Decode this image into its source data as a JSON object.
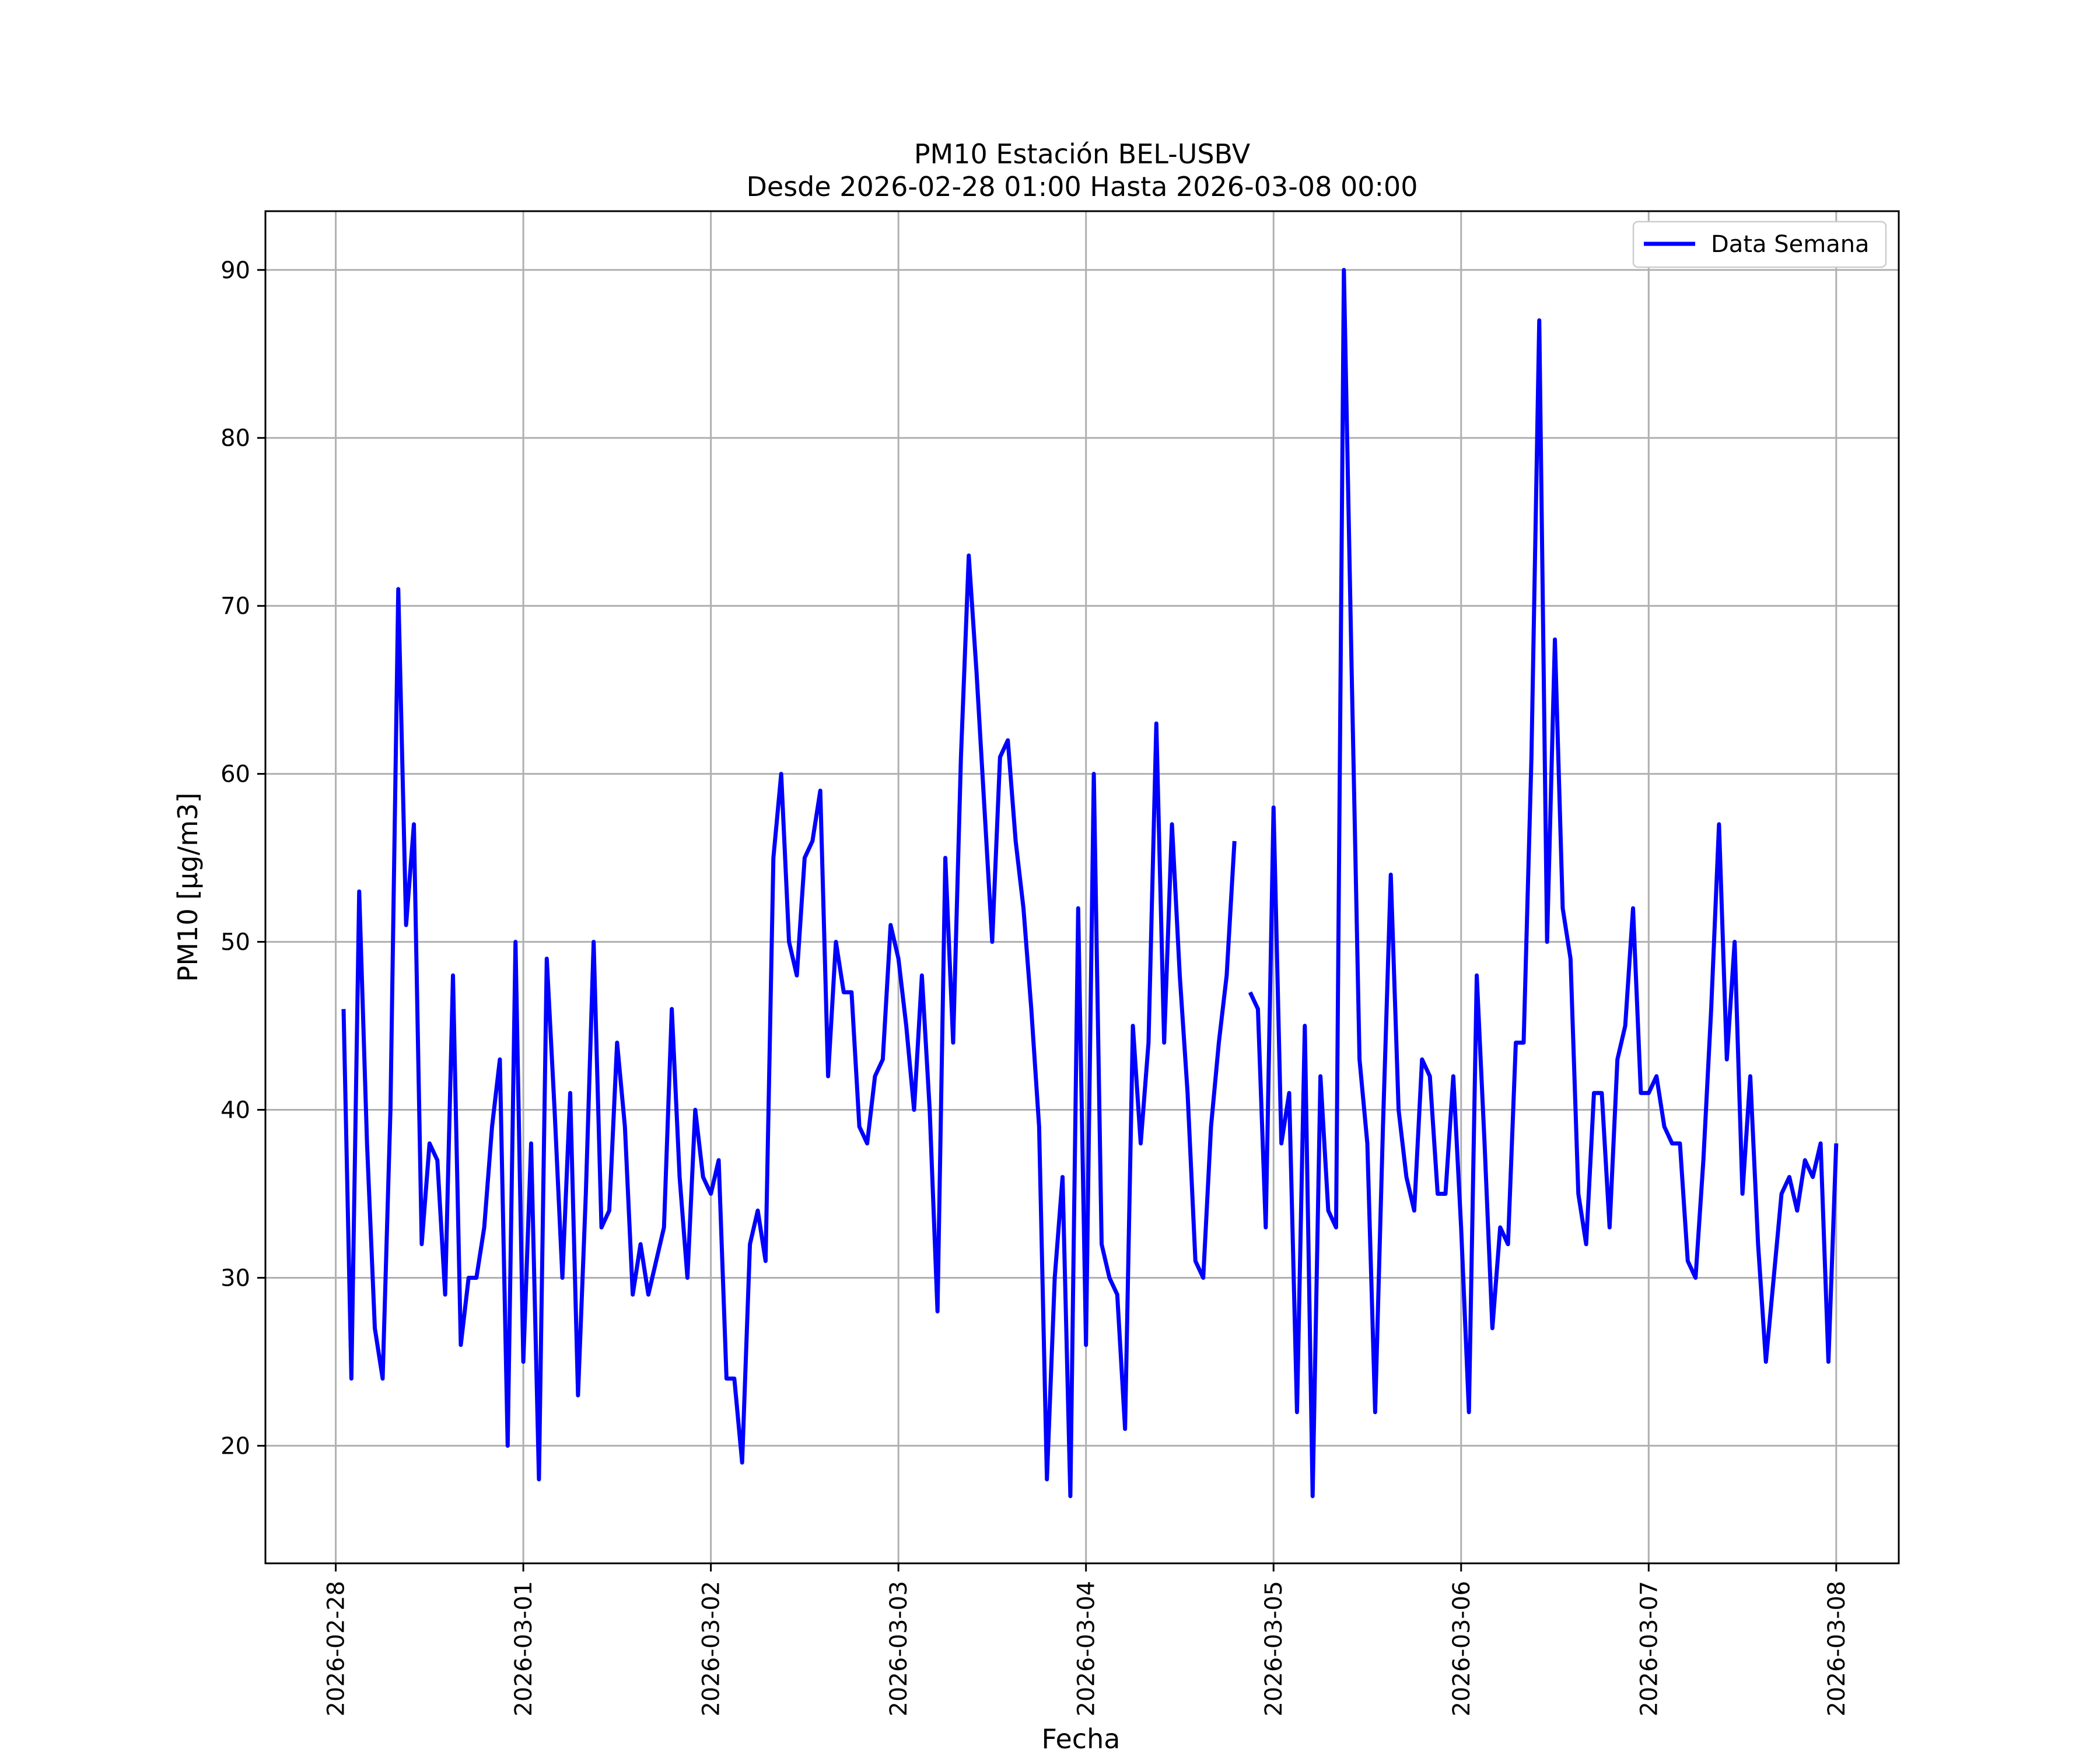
{
  "chart_data": {
    "type": "line",
    "title": "PM10 Estación BEL-USBV",
    "subtitle": "Desde 2026-02-28 01:00 Hasta 2026-03-08 00:00",
    "xlabel": "Fecha",
    "ylabel": "PM10 [μg/m3]",
    "x_range": [
      "2026-02-27 15:00",
      "2026-03-08 08:00"
    ],
    "x_ticks": [
      "2026-02-28",
      "2026-03-01",
      "2026-03-02",
      "2026-03-03",
      "2026-03-04",
      "2026-03-05",
      "2026-03-06",
      "2026-03-07",
      "2026-03-08"
    ],
    "ylim": [
      13,
      93.5
    ],
    "y_ticks": [
      20,
      30,
      40,
      50,
      60,
      70,
      80,
      90
    ],
    "grid": true,
    "legend_position": "top-right",
    "series": [
      {
        "name": "Data Semana",
        "color": "#0000ff",
        "points": [
          [
            "2026-02-28 01:00",
            46
          ],
          [
            "2026-02-28 02:00",
            24
          ],
          [
            "2026-02-28 03:00",
            53
          ],
          [
            "2026-02-28 04:00",
            38
          ],
          [
            "2026-02-28 05:00",
            27
          ],
          [
            "2026-02-28 06:00",
            24
          ],
          [
            "2026-02-28 07:00",
            40
          ],
          [
            "2026-02-28 08:00",
            71
          ],
          [
            "2026-02-28 09:00",
            51
          ],
          [
            "2026-02-28 10:00",
            57
          ],
          [
            "2026-02-28 11:00",
            32
          ],
          [
            "2026-02-28 12:00",
            38
          ],
          [
            "2026-02-28 13:00",
            37
          ],
          [
            "2026-02-28 14:00",
            29
          ],
          [
            "2026-02-28 15:00",
            48
          ],
          [
            "2026-02-28 16:00",
            26
          ],
          [
            "2026-02-28 17:00",
            30
          ],
          [
            "2026-02-28 18:00",
            30
          ],
          [
            "2026-02-28 19:00",
            33
          ],
          [
            "2026-02-28 20:00",
            39
          ],
          [
            "2026-02-28 21:00",
            43
          ],
          [
            "2026-02-28 22:00",
            20
          ],
          [
            "2026-02-28 23:00",
            50
          ],
          [
            "2026-03-01 00:00",
            25
          ],
          [
            "2026-03-01 01:00",
            38
          ],
          [
            "2026-03-01 02:00",
            18
          ],
          [
            "2026-03-01 03:00",
            49
          ],
          [
            "2026-03-01 04:00",
            40
          ],
          [
            "2026-03-01 05:00",
            30
          ],
          [
            "2026-03-01 06:00",
            41
          ],
          [
            "2026-03-01 07:00",
            23
          ],
          [
            "2026-03-01 08:00",
            35
          ],
          [
            "2026-03-01 09:00",
            50
          ],
          [
            "2026-03-01 10:00",
            33
          ],
          [
            "2026-03-01 11:00",
            34
          ],
          [
            "2026-03-01 12:00",
            44
          ],
          [
            "2026-03-01 13:00",
            39
          ],
          [
            "2026-03-01 14:00",
            29
          ],
          [
            "2026-03-01 15:00",
            32
          ],
          [
            "2026-03-01 16:00",
            29
          ],
          [
            "2026-03-01 17:00",
            31
          ],
          [
            "2026-03-01 18:00",
            33
          ],
          [
            "2026-03-01 19:00",
            46
          ],
          [
            "2026-03-01 20:00",
            36
          ],
          [
            "2026-03-01 21:00",
            30
          ],
          [
            "2026-03-01 22:00",
            40
          ],
          [
            "2026-03-01 23:00",
            36
          ],
          [
            "2026-03-02 00:00",
            35
          ],
          [
            "2026-03-02 01:00",
            37
          ],
          [
            "2026-03-02 02:00",
            24
          ],
          [
            "2026-03-02 03:00",
            24
          ],
          [
            "2026-03-02 04:00",
            19
          ],
          [
            "2026-03-02 05:00",
            32
          ],
          [
            "2026-03-02 06:00",
            34
          ],
          [
            "2026-03-02 07:00",
            31
          ],
          [
            "2026-03-02 08:00",
            55
          ],
          [
            "2026-03-02 09:00",
            60
          ],
          [
            "2026-03-02 10:00",
            50
          ],
          [
            "2026-03-02 11:00",
            48
          ],
          [
            "2026-03-02 12:00",
            55
          ],
          [
            "2026-03-02 13:00",
            56
          ],
          [
            "2026-03-02 14:00",
            59
          ],
          [
            "2026-03-02 15:00",
            42
          ],
          [
            "2026-03-02 16:00",
            50
          ],
          [
            "2026-03-02 17:00",
            47
          ],
          [
            "2026-03-02 18:00",
            47
          ],
          [
            "2026-03-02 19:00",
            39
          ],
          [
            "2026-03-02 20:00",
            38
          ],
          [
            "2026-03-02 21:00",
            42
          ],
          [
            "2026-03-02 22:00",
            43
          ],
          [
            "2026-03-02 23:00",
            51
          ],
          [
            "2026-03-03 00:00",
            49
          ],
          [
            "2026-03-03 01:00",
            45
          ],
          [
            "2026-03-03 02:00",
            40
          ],
          [
            "2026-03-03 03:00",
            48
          ],
          [
            "2026-03-03 04:00",
            40
          ],
          [
            "2026-03-03 05:00",
            28
          ],
          [
            "2026-03-03 06:00",
            55
          ],
          [
            "2026-03-03 07:00",
            44
          ],
          [
            "2026-03-03 08:00",
            61
          ],
          [
            "2026-03-03 09:00",
            73
          ],
          [
            "2026-03-03 10:00",
            66
          ],
          [
            "2026-03-03 11:00",
            58
          ],
          [
            "2026-03-03 12:00",
            50
          ],
          [
            "2026-03-03 13:00",
            61
          ],
          [
            "2026-03-03 14:00",
            62
          ],
          [
            "2026-03-03 15:00",
            56
          ],
          [
            "2026-03-03 16:00",
            52
          ],
          [
            "2026-03-03 17:00",
            46
          ],
          [
            "2026-03-03 18:00",
            39
          ],
          [
            "2026-03-03 19:00",
            18
          ],
          [
            "2026-03-03 20:00",
            30
          ],
          [
            "2026-03-03 21:00",
            36
          ],
          [
            "2026-03-03 22:00",
            17
          ],
          [
            "2026-03-03 23:00",
            52
          ],
          [
            "2026-03-04 00:00",
            26
          ],
          [
            "2026-03-04 01:00",
            60
          ],
          [
            "2026-03-04 02:00",
            32
          ],
          [
            "2026-03-04 03:00",
            30
          ],
          [
            "2026-03-04 04:00",
            29
          ],
          [
            "2026-03-04 05:00",
            21
          ],
          [
            "2026-03-04 06:00",
            45
          ],
          [
            "2026-03-04 07:00",
            38
          ],
          [
            "2026-03-04 08:00",
            44
          ],
          [
            "2026-03-04 09:00",
            63
          ],
          [
            "2026-03-04 10:00",
            44
          ],
          [
            "2026-03-04 11:00",
            57
          ],
          [
            "2026-03-04 12:00",
            48
          ],
          [
            "2026-03-04 13:00",
            41
          ],
          [
            "2026-03-04 14:00",
            31
          ],
          [
            "2026-03-04 15:00",
            30
          ],
          [
            "2026-03-04 16:00",
            39
          ],
          [
            "2026-03-04 17:00",
            44
          ],
          [
            "2026-03-04 18:00",
            48
          ],
          [
            "2026-03-04 19:00",
            56
          ],
          [
            "2026-03-04 20:00",
            null
          ],
          [
            "2026-03-04 21:00",
            47
          ],
          [
            "2026-03-04 22:00",
            46
          ],
          [
            "2026-03-04 23:00",
            33
          ],
          [
            "2026-03-05 00:00",
            58
          ],
          [
            "2026-03-05 01:00",
            38
          ],
          [
            "2026-03-05 02:00",
            41
          ],
          [
            "2026-03-05 03:00",
            22
          ],
          [
            "2026-03-05 04:00",
            45
          ],
          [
            "2026-03-05 05:00",
            17
          ],
          [
            "2026-03-05 06:00",
            42
          ],
          [
            "2026-03-05 07:00",
            34
          ],
          [
            "2026-03-05 08:00",
            33
          ],
          [
            "2026-03-05 09:00",
            90
          ],
          [
            "2026-03-05 10:00",
            66
          ],
          [
            "2026-03-05 11:00",
            43
          ],
          [
            "2026-03-05 12:00",
            38
          ],
          [
            "2026-03-05 13:00",
            22
          ],
          [
            "2026-03-05 14:00",
            39
          ],
          [
            "2026-03-05 15:00",
            54
          ],
          [
            "2026-03-05 16:00",
            40
          ],
          [
            "2026-03-05 17:00",
            36
          ],
          [
            "2026-03-05 18:00",
            34
          ],
          [
            "2026-03-05 19:00",
            43
          ],
          [
            "2026-03-05 20:00",
            42
          ],
          [
            "2026-03-05 21:00",
            35
          ],
          [
            "2026-03-05 22:00",
            35
          ],
          [
            "2026-03-05 23:00",
            42
          ],
          [
            "2026-03-06 00:00",
            33
          ],
          [
            "2026-03-06 01:00",
            22
          ],
          [
            "2026-03-06 02:00",
            48
          ],
          [
            "2026-03-06 03:00",
            38
          ],
          [
            "2026-03-06 04:00",
            27
          ],
          [
            "2026-03-06 05:00",
            33
          ],
          [
            "2026-03-06 06:00",
            32
          ],
          [
            "2026-03-06 07:00",
            44
          ],
          [
            "2026-03-06 08:00",
            44
          ],
          [
            "2026-03-06 09:00",
            61
          ],
          [
            "2026-03-06 10:00",
            87
          ],
          [
            "2026-03-06 11:00",
            50
          ],
          [
            "2026-03-06 12:00",
            68
          ],
          [
            "2026-03-06 13:00",
            52
          ],
          [
            "2026-03-06 14:00",
            49
          ],
          [
            "2026-03-06 15:00",
            35
          ],
          [
            "2026-03-06 16:00",
            32
          ],
          [
            "2026-03-06 17:00",
            41
          ],
          [
            "2026-03-06 18:00",
            41
          ],
          [
            "2026-03-06 19:00",
            33
          ],
          [
            "2026-03-06 20:00",
            43
          ],
          [
            "2026-03-06 21:00",
            45
          ],
          [
            "2026-03-06 22:00",
            52
          ],
          [
            "2026-03-06 23:00",
            41
          ],
          [
            "2026-03-07 00:00",
            41
          ],
          [
            "2026-03-07 01:00",
            42
          ],
          [
            "2026-03-07 02:00",
            39
          ],
          [
            "2026-03-07 03:00",
            38
          ],
          [
            "2026-03-07 04:00",
            38
          ],
          [
            "2026-03-07 05:00",
            31
          ],
          [
            "2026-03-07 06:00",
            30
          ],
          [
            "2026-03-07 07:00",
            37
          ],
          [
            "2026-03-07 08:00",
            46
          ],
          [
            "2026-03-07 09:00",
            57
          ],
          [
            "2026-03-07 10:00",
            43
          ],
          [
            "2026-03-07 11:00",
            50
          ],
          [
            "2026-03-07 12:00",
            35
          ],
          [
            "2026-03-07 13:00",
            42
          ],
          [
            "2026-03-07 14:00",
            32
          ],
          [
            "2026-03-07 15:00",
            25
          ],
          [
            "2026-03-07 16:00",
            30
          ],
          [
            "2026-03-07 17:00",
            35
          ],
          [
            "2026-03-07 18:00",
            36
          ],
          [
            "2026-03-07 19:00",
            34
          ],
          [
            "2026-03-07 20:00",
            37
          ],
          [
            "2026-03-07 21:00",
            36
          ],
          [
            "2026-03-07 22:00",
            38
          ],
          [
            "2026-03-07 23:00",
            25
          ],
          [
            "2026-03-08 00:00",
            38
          ]
        ]
      }
    ]
  }
}
